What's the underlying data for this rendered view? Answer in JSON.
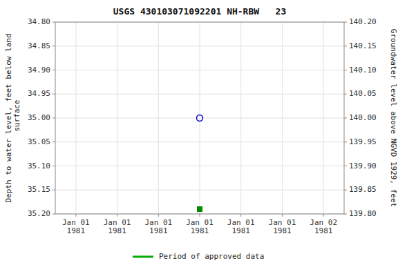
{
  "chart_data": {
    "type": "scatter",
    "title": "USGS 430103071092201 NH-RBW   23",
    "y_label": "Depth to water level, feet below land\n surface",
    "y2_label": "Groundwater level above NGVD 1929, feet",
    "categories": [
      "Jan 01\n1981",
      "Jan 01\n1981",
      "Jan 01\n1981",
      "Jan 01\n1981",
      "Jan 01\n1981",
      "Jan 01\n1981",
      "Jan 02\n1981"
    ],
    "ylim": [
      35.2,
      34.8
    ],
    "yticks": [
      {
        "value": 34.8,
        "label": "34.80"
      },
      {
        "value": 34.85,
        "label": "34.85"
      },
      {
        "value": 34.9,
        "label": "34.90"
      },
      {
        "value": 34.95,
        "label": "34.95"
      },
      {
        "value": 35.0,
        "label": "35.00"
      },
      {
        "value": 35.05,
        "label": "35.05"
      },
      {
        "value": 35.1,
        "label": "35.10"
      },
      {
        "value": 35.15,
        "label": "35.15"
      },
      {
        "value": 35.2,
        "label": "35.20"
      }
    ],
    "y2lim": [
      139.8,
      140.2
    ],
    "y2ticks": [
      {
        "value": 139.8,
        "label": "139.80"
      },
      {
        "value": 139.85,
        "label": "139.85"
      },
      {
        "value": 139.9,
        "label": "139.90"
      },
      {
        "value": 139.95,
        "label": "139.95"
      },
      {
        "value": 140.0,
        "label": "140.00"
      },
      {
        "value": 140.05,
        "label": "140.05"
      },
      {
        "value": 140.1,
        "label": "140.10"
      },
      {
        "value": 140.15,
        "label": "140.15"
      },
      {
        "value": 140.2,
        "label": "140.20"
      }
    ],
    "grid": true,
    "series": [
      {
        "color": "#0000cc",
        "marker": "circle-open",
        "values": [
          null,
          null,
          null,
          35.0,
          null,
          null,
          null
        ]
      },
      {
        "color": "#008800",
        "marker": "square",
        "values": [
          null,
          null,
          null,
          35.19,
          null,
          null,
          null
        ]
      }
    ],
    "annotations": [
      {
        "text": "Period of approved data",
        "color": "#00aa00"
      }
    ]
  }
}
